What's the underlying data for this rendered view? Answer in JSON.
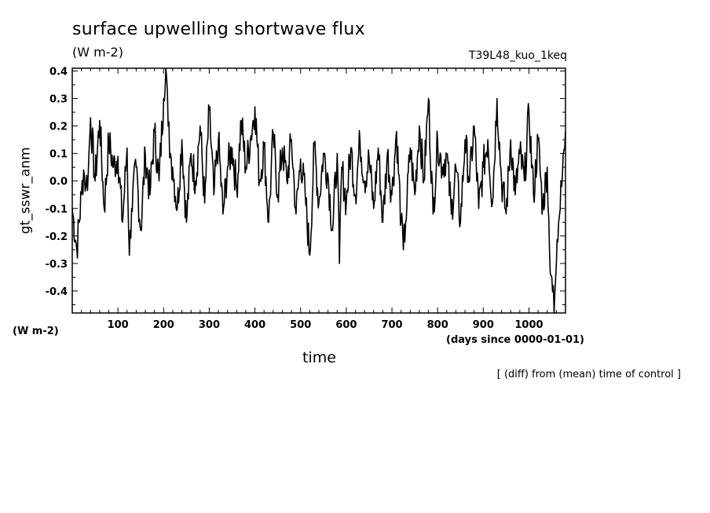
{
  "chart_data": {
    "type": "line",
    "title": "surface upwelling shortwave flux",
    "title_units": "(W m-2)",
    "run_label": "T39L48_kuo_1keq",
    "ylabel": "gt_sswr_anm",
    "ylabel_units": "(W m-2)",
    "xlabel": "time",
    "xlabel_units": "(days since 0000-01-01)",
    "note": "[ (diff) from (mean) time of control ]",
    "xlim": [
      0,
      1080
    ],
    "ylim": [
      -0.48,
      0.41
    ],
    "xticks": [
      100,
      200,
      300,
      400,
      500,
      600,
      700,
      800,
      900,
      1000
    ],
    "xtick_labels": [
      "100",
      "200",
      "300",
      "400",
      "500",
      "600",
      "700",
      "800",
      "900",
      "1000"
    ],
    "yticks": [
      -0.4,
      -0.3,
      -0.2,
      -0.1,
      0.0,
      0.1,
      0.2,
      0.3,
      0.4
    ],
    "ytick_labels": [
      "-0.4",
      "-0.3",
      "-0.2",
      "-0.1",
      "0.0",
      "0.1",
      "0.2",
      "0.3",
      "0.4"
    ],
    "line_color": "#000000",
    "series": [
      {
        "x": [
          0,
          10,
          20,
          25,
          30,
          35,
          40,
          50,
          60,
          70,
          80,
          90,
          100,
          110,
          120,
          125,
          130,
          140,
          150,
          160,
          170,
          180,
          190,
          200,
          205,
          210,
          215,
          220,
          230,
          240,
          250,
          260,
          270,
          280,
          290,
          300,
          310,
          320,
          330,
          340,
          350,
          360,
          370,
          380,
          390,
          400,
          410,
          420,
          430,
          440,
          450,
          460,
          470,
          480,
          490,
          500,
          510,
          520,
          530,
          540,
          550,
          560,
          570,
          580,
          585,
          590,
          600,
          610,
          620,
          630,
          640,
          650,
          660,
          670,
          680,
          690,
          700,
          710,
          720,
          725,
          730,
          740,
          750,
          760,
          770,
          780,
          790,
          800,
          810,
          820,
          830,
          840,
          850,
          860,
          870,
          880,
          890,
          900,
          910,
          920,
          930,
          940,
          950,
          960,
          970,
          980,
          990,
          1000,
          1010,
          1020,
          1030,
          1040,
          1045,
          1050,
          1055,
          1060,
          1065,
          1070,
          1075,
          1080
        ],
        "y": [
          -0.1,
          -0.25,
          -0.05,
          0.04,
          -0.02,
          0.03,
          0.23,
          0.0,
          0.22,
          -0.1,
          0.15,
          0.05,
          0.09,
          -0.15,
          0.12,
          -0.27,
          -0.1,
          0.05,
          -0.18,
          0.1,
          -0.05,
          0.18,
          0.0,
          0.3,
          0.45,
          0.2,
          0.1,
          0.05,
          -0.1,
          0.15,
          -0.15,
          0.1,
          0.0,
          0.2,
          -0.08,
          0.26,
          -0.05,
          0.15,
          -0.12,
          0.05,
          0.12,
          -0.03,
          0.22,
          0.05,
          0.15,
          0.27,
          0.0,
          0.13,
          -0.15,
          0.17,
          -0.05,
          0.12,
          0.0,
          0.15,
          -0.12,
          0.08,
          -0.05,
          -0.27,
          0.13,
          -0.08,
          0.1,
          0.02,
          -0.18,
          0.1,
          -0.3,
          0.05,
          -0.08,
          0.12,
          -0.05,
          0.15,
          0.0,
          0.08,
          -0.1,
          0.12,
          -0.15,
          0.1,
          -0.05,
          0.18,
          -0.15,
          -0.25,
          -0.15,
          0.12,
          -0.05,
          0.2,
          0.0,
          0.3,
          -0.12,
          0.15,
          0.05,
          0.1,
          -0.12,
          0.05,
          -0.15,
          0.15,
          0.0,
          0.2,
          -0.1,
          0.05,
          0.15,
          -0.08,
          0.3,
          0.0,
          -0.12,
          0.15,
          -0.05,
          0.1,
          0.0,
          0.25,
          -0.05,
          0.15,
          -0.1,
          0.05,
          -0.25,
          -0.35,
          -0.48,
          -0.3,
          -0.15,
          0.0,
          0.1,
          0.18
        ]
      }
    ]
  }
}
